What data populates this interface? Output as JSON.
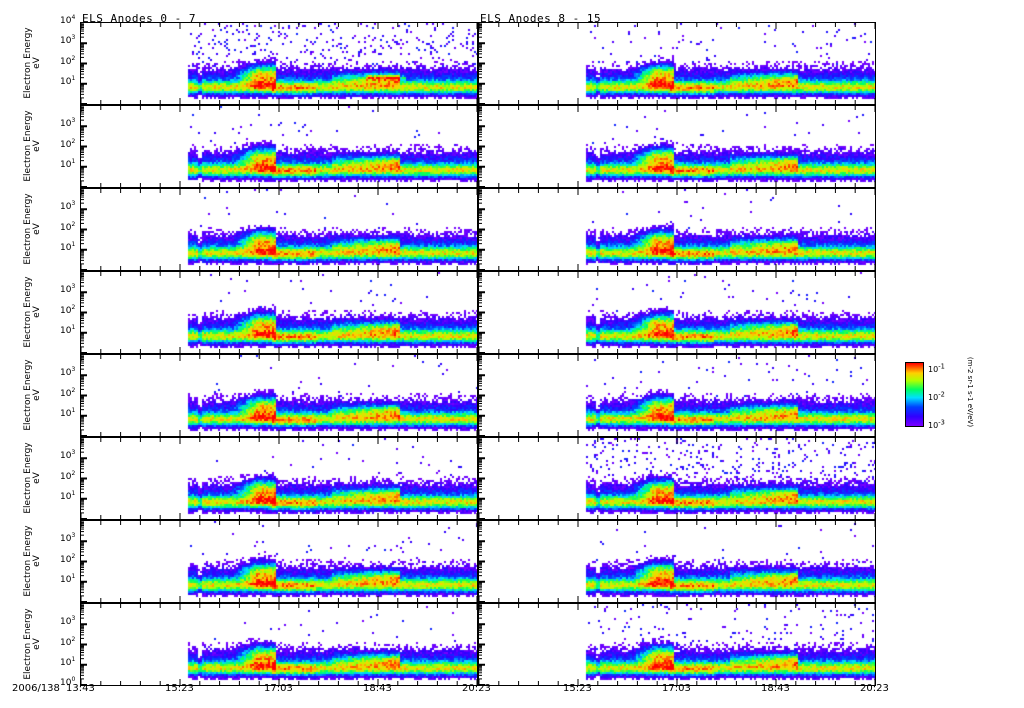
{
  "chart_data": {
    "type": "heatmap",
    "titles": [
      "ELS Anodes 0 - 7",
      "ELS Anodes 8 - 15"
    ],
    "ylabel": "Electron Energy\neV",
    "ylabel_line1": "Electron Energy",
    "ylabel_line2": "eV",
    "yscale": "log",
    "ylim": [
      1,
      10000
    ],
    "ytick_labels_top_panel": [
      "10^4",
      "10^3",
      "10^2",
      "10^1"
    ],
    "ytick_labels_bottom_panel": [
      "10^3",
      "10^2",
      "10^1",
      "10^0"
    ],
    "date_label": "2006/138",
    "xtick_labels": [
      "13:43",
      "15:23",
      "17:03",
      "18:43",
      "20:23"
    ],
    "xtick_minutes": [
      823,
      923,
      1023,
      1123,
      1223
    ],
    "xlim_minutes": [
      823,
      1223
    ],
    "data_start_minutes": 932,
    "colorbar": {
      "label": "(m-2 sr-1 s-1 eV/eV)",
      "tick_labels": [
        "10^-1",
        "10^-2",
        "10^-3"
      ],
      "colors": [
        "#7a00ff",
        "#0040ff",
        "#00e0ff",
        "#00ff60",
        "#ffd000",
        "#ff0000"
      ]
    },
    "features": {
      "core_band_logE": 0.85,
      "energization_event_minutes": [
        990,
        1015
      ],
      "energization_peak_logE": 1.5,
      "secondary_band_minutes": [
        1075,
        1145
      ],
      "secondary_band_logE": 1.3
    },
    "panels": [
      {
        "anode": 0,
        "column": 0,
        "scatter": 0.9
      },
      {
        "anode": 1,
        "column": 0,
        "scatter": 0.1
      },
      {
        "anode": 2,
        "column": 0,
        "scatter": 0.08
      },
      {
        "anode": 3,
        "column": 0,
        "scatter": 0.08
      },
      {
        "anode": 4,
        "column": 0,
        "scatter": 0.08
      },
      {
        "anode": 5,
        "column": 0,
        "scatter": 0.1
      },
      {
        "anode": 6,
        "column": 0,
        "scatter": 0.15
      },
      {
        "anode": 7,
        "column": 0,
        "scatter": 0.1
      },
      {
        "anode": 8,
        "column": 1,
        "scatter": 0.25
      },
      {
        "anode": 9,
        "column": 1,
        "scatter": 0.1
      },
      {
        "anode": 10,
        "column": 1,
        "scatter": 0.1
      },
      {
        "anode": 11,
        "column": 1,
        "scatter": 0.12
      },
      {
        "anode": 12,
        "column": 1,
        "scatter": 0.15
      },
      {
        "anode": 13,
        "column": 1,
        "scatter": 0.9
      },
      {
        "anode": 14,
        "column": 1,
        "scatter": 0.1
      },
      {
        "anode": 15,
        "column": 1,
        "scatter": 0.35
      }
    ]
  }
}
